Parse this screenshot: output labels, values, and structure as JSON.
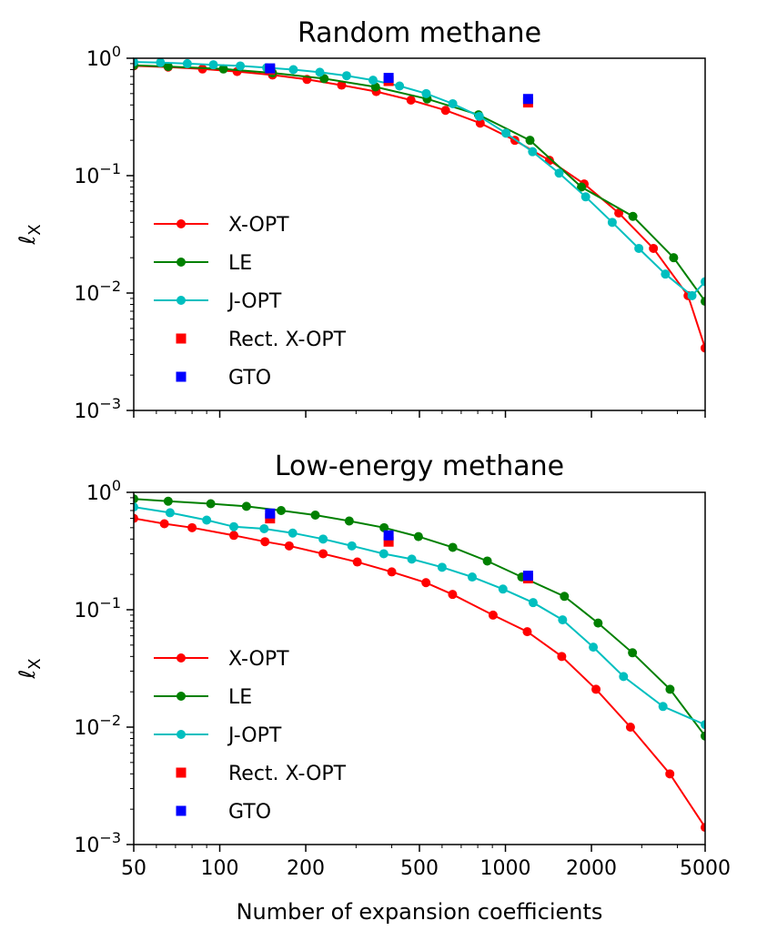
{
  "figure": {
    "xlabel": "Number of expansion coefficients",
    "x_ticks": [
      50,
      100,
      200,
      500,
      1000,
      2000,
      5000
    ],
    "x_tick_labels": [
      "50",
      "100",
      "200",
      "500",
      "1000",
      "2000",
      "5000"
    ],
    "xlim": [
      50,
      5000
    ],
    "xscale": "log",
    "y_ticks": [
      0.001,
      0.01,
      0.1,
      1
    ],
    "y_tick_labels": [
      {
        "base": "10",
        "exp": "−3"
      },
      {
        "base": "10",
        "exp": "−2"
      },
      {
        "base": "10",
        "exp": "−1"
      },
      {
        "base": "10",
        "exp": "0"
      }
    ],
    "ylim": [
      0.001,
      1
    ],
    "yscale": "log"
  },
  "chart_data": [
    {
      "type": "line",
      "title": "Random methane",
      "ylabel_main": "ℓ",
      "ylabel_sub": "X",
      "legend_position": "lower-left",
      "series": [
        {
          "name": "X-OPT",
          "color": "#ff0000",
          "style": "line-circle",
          "x": [
            50,
            66,
            87,
            115,
            153,
            202,
            267,
            353,
            467,
            617,
            816,
            1079,
            1426,
            1886,
            2493,
            3296,
            4357,
            5000
          ],
          "y": [
            0.86,
            0.84,
            0.81,
            0.77,
            0.72,
            0.66,
            0.59,
            0.52,
            0.44,
            0.36,
            0.28,
            0.2,
            0.135,
            0.085,
            0.048,
            0.024,
            0.0095,
            0.0034
          ]
        },
        {
          "name": "LE",
          "color": "#008000",
          "style": "line-circle",
          "x": [
            50,
            66,
            103,
            153,
            232,
            351,
            532,
            805,
            1219,
            1845,
            2793,
            3879,
            5000
          ],
          "y": [
            0.87,
            0.85,
            0.81,
            0.75,
            0.67,
            0.57,
            0.45,
            0.33,
            0.2,
            0.08,
            0.045,
            0.02,
            0.0085
          ],
          "plot_indices": [
            1,
            2,
            3,
            4,
            5,
            6,
            7,
            8,
            9,
            10,
            11,
            12
          ]
        },
        {
          "name": "J-OPT",
          "color": "#00bfbf",
          "style": "line-circle",
          "x": [
            50,
            62,
            77,
            95,
            118,
            146,
            181,
            224,
            278,
            344,
            426,
            528,
            654,
            810,
            1004,
            1244,
            1541,
            1909,
            2365,
            2930,
            3630,
            4497,
            5000
          ],
          "y": [
            0.93,
            0.92,
            0.9,
            0.88,
            0.86,
            0.83,
            0.8,
            0.76,
            0.71,
            0.65,
            0.58,
            0.5,
            0.41,
            0.32,
            0.23,
            0.16,
            0.105,
            0.066,
            0.04,
            0.024,
            0.0145,
            0.0095,
            0.0125
          ]
        },
        {
          "name": "Rect. X-OPT",
          "color": "#ff0000",
          "style": "square",
          "x": [
            150,
            390,
            1200
          ],
          "y": [
            0.8,
            0.64,
            0.42
          ]
        },
        {
          "name": "GTO",
          "color": "#0000ff",
          "style": "square",
          "x": [
            150,
            390,
            1200
          ],
          "y": [
            0.82,
            0.68,
            0.45
          ]
        }
      ]
    },
    {
      "type": "line",
      "title": "Low-energy methane",
      "ylabel_main": "ℓ",
      "ylabel_sub": "X",
      "legend_position": "lower-left",
      "series": [
        {
          "name": "X-OPT",
          "color": "#ff0000",
          "style": "line-circle",
          "x": [
            50,
            64,
            80,
            112,
            144,
            175,
            230,
            303,
            400,
            527,
            653,
            905,
            1192,
            1574,
            2075,
            2739,
            3762,
            5000
          ],
          "y": [
            0.6,
            0.54,
            0.5,
            0.43,
            0.38,
            0.35,
            0.3,
            0.255,
            0.21,
            0.17,
            0.135,
            0.09,
            0.065,
            0.04,
            0.021,
            0.01,
            0.004,
            0.0014
          ]
        },
        {
          "name": "LE",
          "color": "#008000",
          "style": "line-circle",
          "x": [
            50,
            66,
            93,
            124,
            164,
            216,
            284,
            376,
            496,
            654,
            864,
            1141,
            1608,
            2110,
            2784,
            3768,
            5000
          ],
          "y": [
            0.88,
            0.84,
            0.8,
            0.76,
            0.7,
            0.64,
            0.57,
            0.5,
            0.42,
            0.34,
            0.26,
            0.19,
            0.13,
            0.077,
            0.043,
            0.021,
            0.0084
          ]
        },
        {
          "name": "J-OPT",
          "color": "#00bfbf",
          "style": "line-circle",
          "x": [
            50,
            67,
            90,
            112,
            143,
            180,
            230,
            290,
            375,
            470,
            600,
            765,
            980,
            1250,
            1585,
            2030,
            2590,
            3560,
            5000
          ],
          "y": [
            0.75,
            0.67,
            0.58,
            0.51,
            0.49,
            0.45,
            0.4,
            0.35,
            0.3,
            0.27,
            0.23,
            0.19,
            0.15,
            0.115,
            0.082,
            0.048,
            0.027,
            0.015,
            0.0105
          ]
        },
        {
          "name": "Rect. X-OPT",
          "color": "#ff0000",
          "style": "square",
          "x": [
            150,
            390,
            1200
          ],
          "y": [
            0.6,
            0.38,
            0.185
          ]
        },
        {
          "name": "GTO",
          "color": "#0000ff",
          "style": "square",
          "x": [
            150,
            390,
            1200
          ],
          "y": [
            0.66,
            0.43,
            0.195
          ]
        }
      ]
    }
  ]
}
